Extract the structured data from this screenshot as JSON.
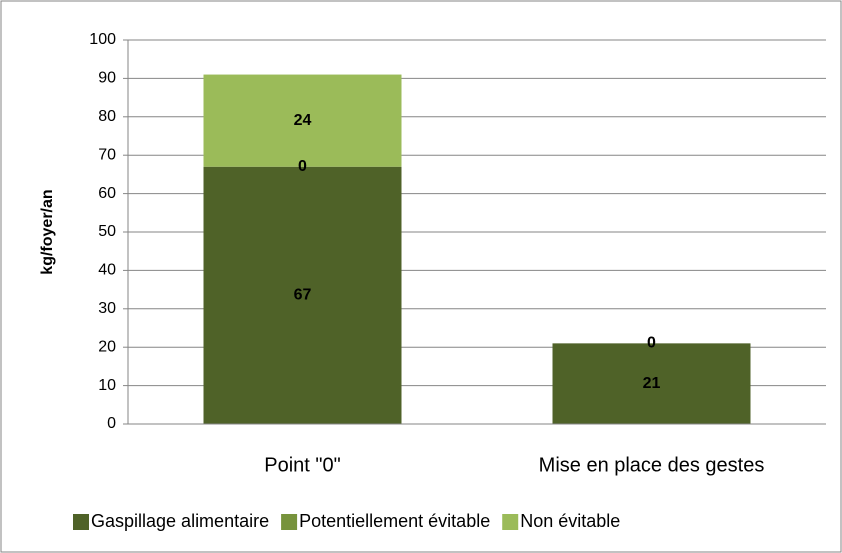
{
  "chart_data": {
    "type": "bar",
    "stacked": true,
    "y_label": "kg/foyer/an",
    "categories": [
      "Point \"0\"",
      "Mise en place des gestes"
    ],
    "series": [
      {
        "name": "Gaspillage alimentaire",
        "color": "#4f6228",
        "values": [
          67,
          21
        ]
      },
      {
        "name": "Potentiellement évitable",
        "color": "#77933c",
        "values": [
          0,
          0
        ]
      },
      {
        "name": "Non évitable",
        "color": "#9bbb59",
        "values": [
          24,
          null
        ]
      }
    ],
    "ylim": [
      0,
      100
    ],
    "yticks": [
      0,
      10,
      20,
      30,
      40,
      50,
      60,
      70,
      80,
      90,
      100
    ],
    "grid": true,
    "legend": "bottom"
  }
}
